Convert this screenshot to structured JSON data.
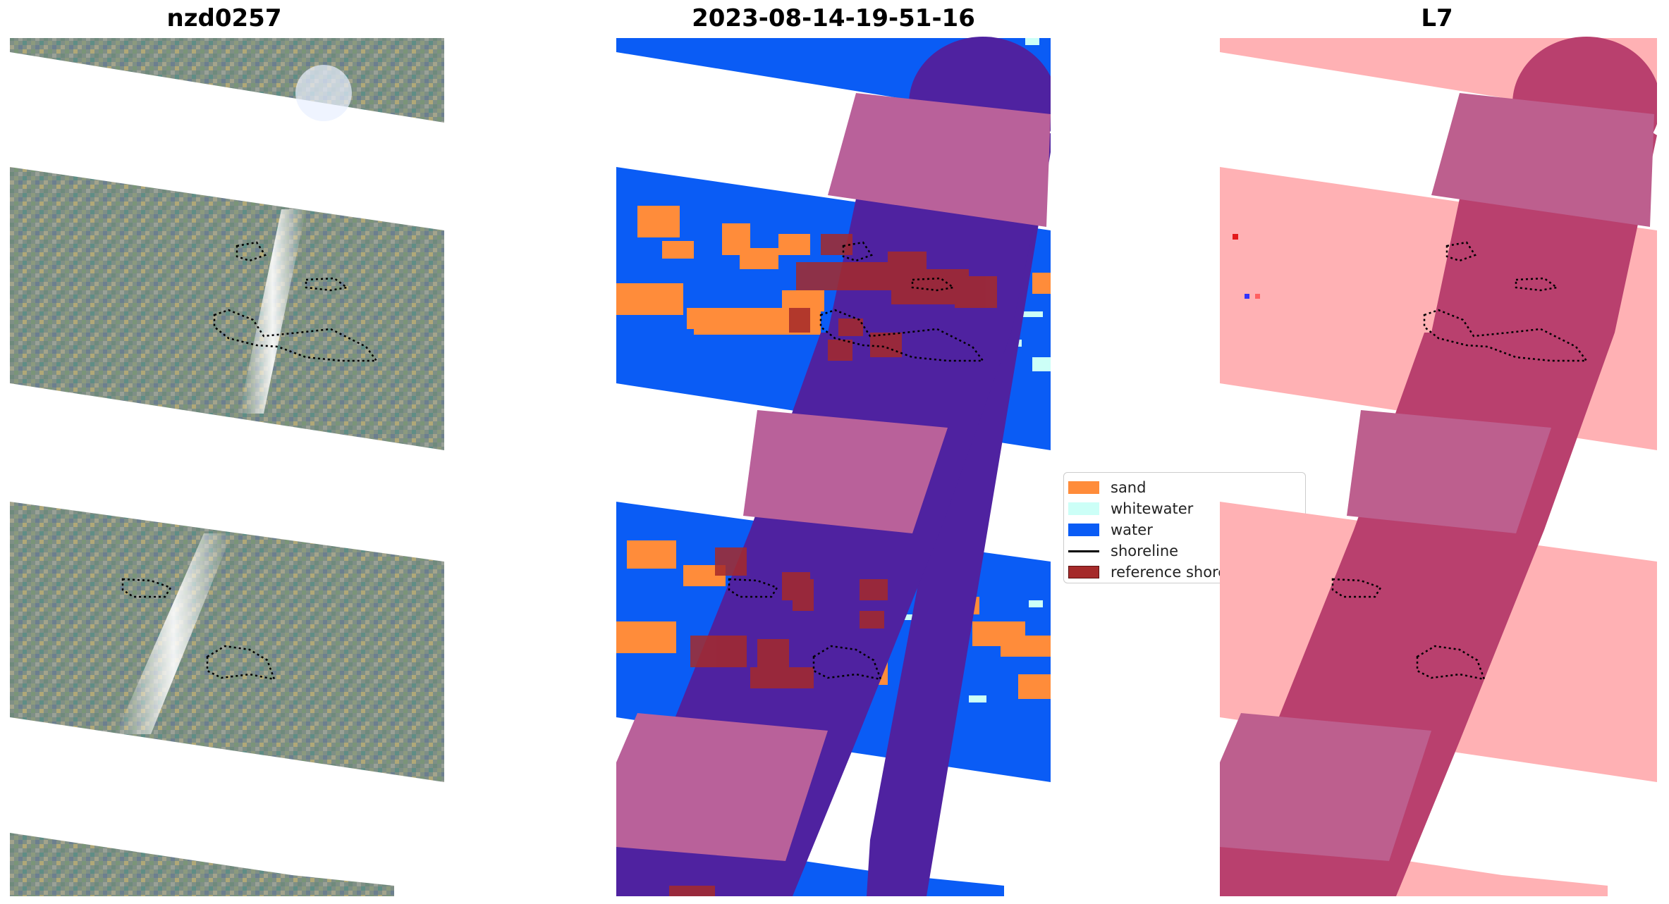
{
  "titles": {
    "left": "nzd0257",
    "middle": "2023-08-14-19-51-16",
    "right": "L7"
  },
  "legend": {
    "items": [
      {
        "label": "sand",
        "color": "#ff8c3a"
      },
      {
        "label": "whitewater",
        "color": "#ccfff7"
      },
      {
        "label": "water",
        "color": "#0a5cf5"
      },
      {
        "label": "shoreline",
        "color": "#000000"
      },
      {
        "label": "reference shoreline buffer",
        "color": "#a52a2a"
      }
    ]
  },
  "colors": {
    "rgb_base": "#7f8f86",
    "sand": "#ff8c3a",
    "whitewater": "#ccfff7",
    "water": "#0a5cf5",
    "cloud_dark": "#4f22a0",
    "cloud_light": "#b9619a",
    "ref_buffer": "#a52a2a",
    "prob_pink": "#ffb1b4",
    "prob_dark": "#b9406e",
    "prob_light": "#bd5f8e",
    "shoreline": "#000000"
  }
}
